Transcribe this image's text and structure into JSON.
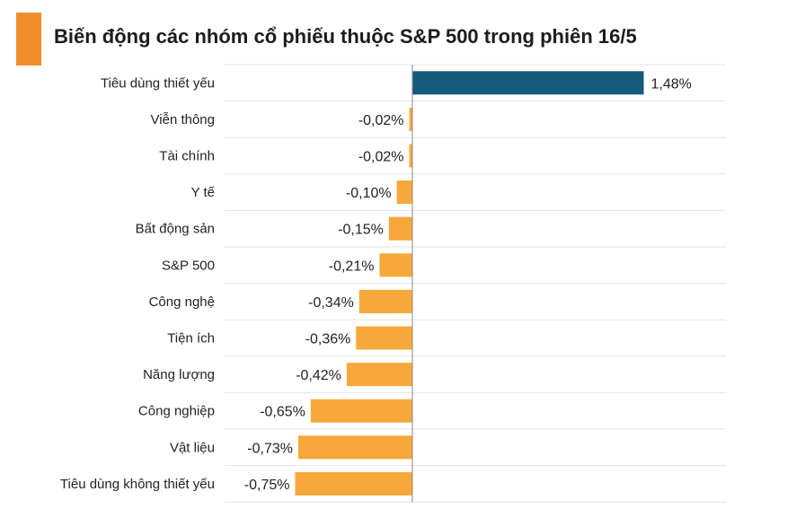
{
  "header": {
    "title": "Biến động các nhóm cổ phiếu thuộc S&P 500 trong phiên 16/5"
  },
  "colors": {
    "accent": "#f08c2a",
    "positive": "#155a7a",
    "negative": "#f7a83a",
    "gridline": "#e4e4e4",
    "axis": "#8a8a8a"
  },
  "chart_data": {
    "type": "bar",
    "orientation": "horizontal",
    "categories": [
      "Tiêu dùng thiết yếu",
      "Viễn thông",
      "Tài chính",
      "Y tế",
      "Bất động sản",
      "S&P 500",
      "Công nghệ",
      "Tiện ích",
      "Năng lượng",
      "Công nghiệp",
      "Vật liệu",
      "Tiêu dùng không thiết yếu"
    ],
    "values": [
      1.48,
      -0.02,
      -0.02,
      -0.1,
      -0.15,
      -0.21,
      -0.34,
      -0.36,
      -0.42,
      -0.65,
      -0.73,
      -0.75
    ],
    "value_labels": [
      "1,48%",
      "-0,02%",
      "-0,02%",
      "-0,10%",
      "-0,15%",
      "-0,21%",
      "-0,34%",
      "-0,36%",
      "-0,42%",
      "-0,65%",
      "-0,73%",
      "-0,75%"
    ],
    "xlim": [
      -0.75,
      2.0
    ],
    "grid": true,
    "legend": "none"
  }
}
